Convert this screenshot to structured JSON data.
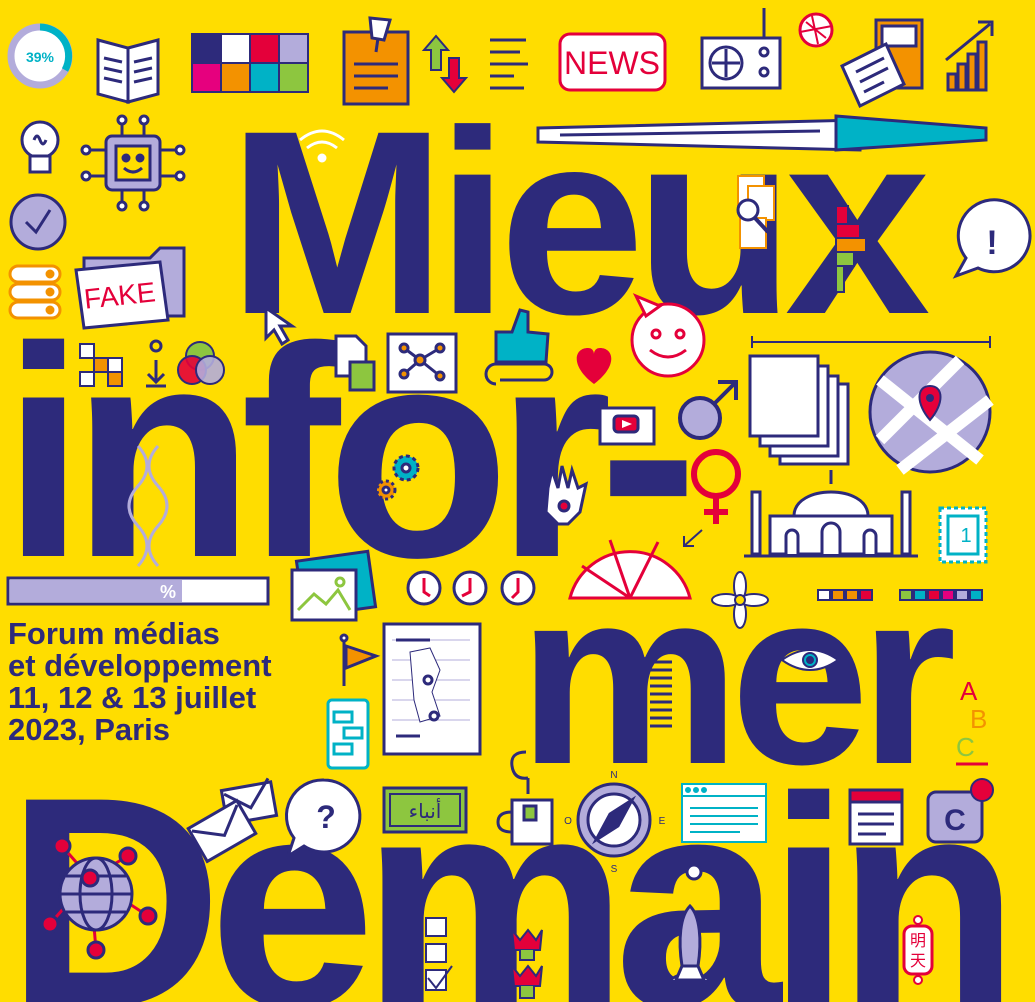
{
  "headline": {
    "line1": "Mieux",
    "line2": "infor-",
    "line3": "mer",
    "line4": "Demain"
  },
  "event": {
    "line1": "Forum médias",
    "line2": "et développement",
    "line3": "11, 12 & 13 juillet",
    "line4": "2023, Paris"
  },
  "icon_labels": {
    "progress_ring": "39%",
    "news": "NEWS",
    "fake": "FAKE",
    "percent": "%",
    "question": "?",
    "exclamation": "!",
    "letter_c": "C",
    "letters_abc": [
      "A",
      "B",
      "C"
    ],
    "compass": [
      "N",
      "O",
      "E",
      "S"
    ],
    "arabic_news": "أنباء",
    "chinese_tomorrow": [
      "明",
      "天"
    ],
    "stamp": "1"
  },
  "colors": {
    "background": "#FFDD00",
    "navy": "#2D2A7B",
    "red": "#E4003A",
    "orange": "#F39200",
    "teal": "#00B2C6",
    "lavender": "#B3ACDB"
  },
  "icons": [
    "progress-ring-icon",
    "book-icon",
    "color-grid-icon",
    "pinned-note-icon",
    "up-down-arrows-icon",
    "text-lines-icon",
    "news-sign-icon",
    "radio-icon",
    "badge-icon",
    "newspaper-icon",
    "growth-chart-icon",
    "lightbulb-icon",
    "robot-chip-icon",
    "wifi-icon",
    "pen-icon",
    "verified-badge-icon",
    "documents-search-icon",
    "exclamation-bubble-icon",
    "database-icon",
    "fake-folder-icon",
    "cursor-icon",
    "smiley-bubble-icon",
    "pixels-icon",
    "download-icon",
    "color-circles-icon",
    "file-icon",
    "network-icon",
    "thumbs-up-icon",
    "paperclip-icon",
    "heart-icon",
    "male-symbol-icon",
    "paper-stack-icon",
    "map-pin-icon",
    "video-icon",
    "female-symbol-icon",
    "dna-icon",
    "gears-icon",
    "hamsa-icon",
    "taj-mahal-icon",
    "stamp-icon",
    "progress-bar-icon",
    "image-icon",
    "clocks-icon",
    "gauge-icon",
    "swatches-icon",
    "flower-icon",
    "flag-icon",
    "chat-phone-icon",
    "map-document-icon",
    "eye-icon",
    "text-column-icon",
    "abc-icon",
    "envelopes-icon",
    "question-bubble-icon",
    "arabic-sign-icon",
    "mug-icon",
    "compass-icon",
    "browser-icon",
    "calendar-icon",
    "copyright-icon",
    "globe-icon",
    "checklist-icon",
    "tulips-icon",
    "rocket-icon",
    "chinese-lantern-icon"
  ]
}
